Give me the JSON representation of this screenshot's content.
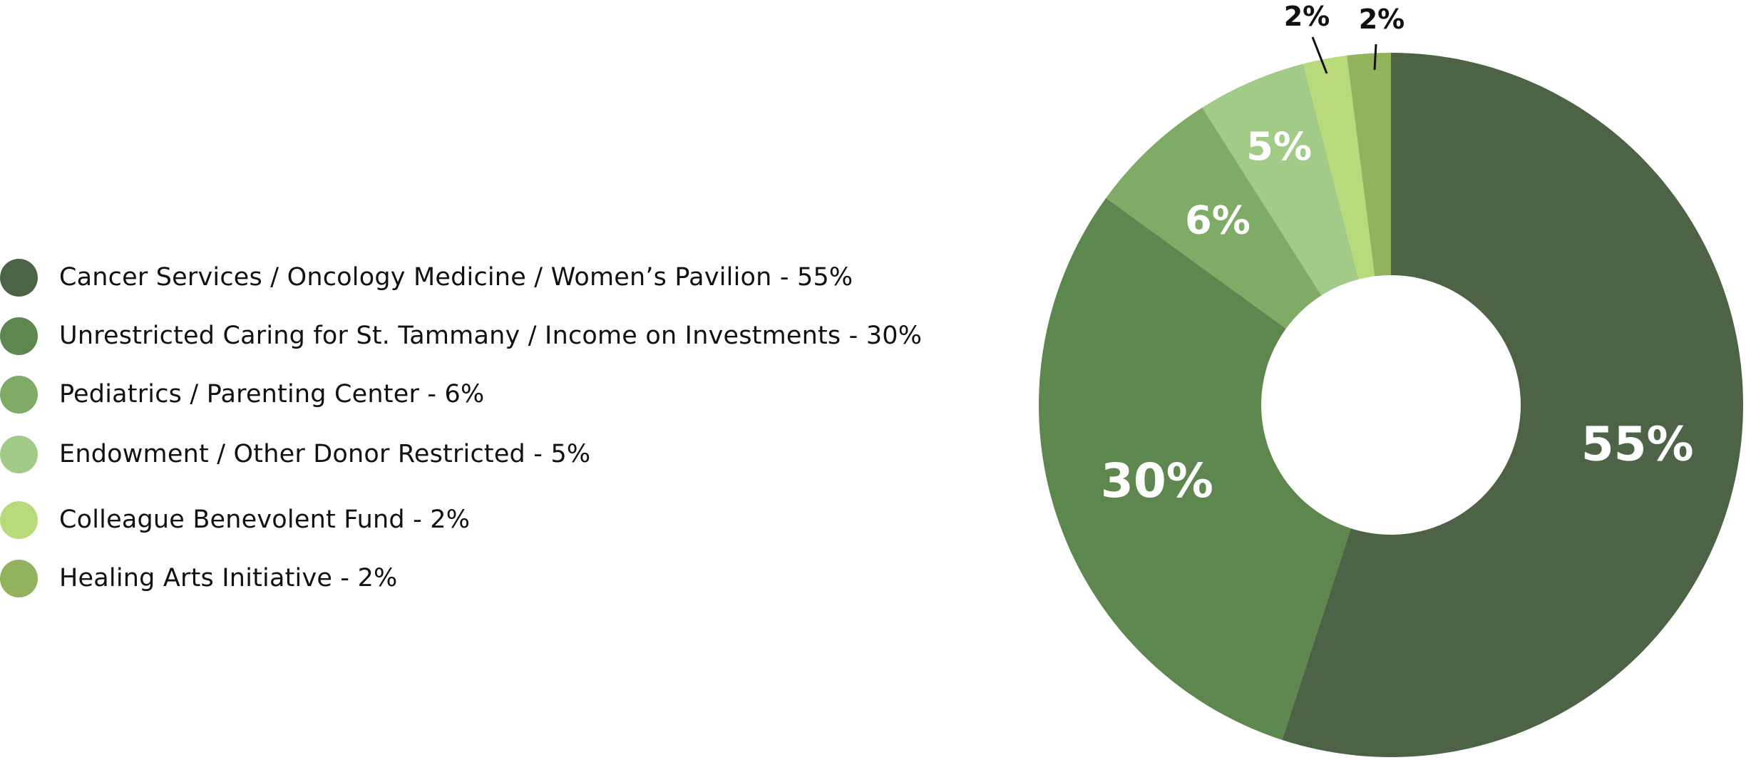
{
  "chart_data": {
    "type": "pie",
    "style": "donut",
    "start_angle_deg": 0,
    "direction": "clockwise",
    "slices": [
      {
        "label": "Cancer Services / Oncology Medicine / Women’s Pavilion - 55%",
        "value": 55,
        "display": "55%",
        "color": "#4c6345"
      },
      {
        "label": "Unrestricted Caring for St. Tammany / Income on Investments - 30%",
        "value": 30,
        "display": "30%",
        "color": "#5e874f"
      },
      {
        "label": "Pediatrics / Parenting Center - 6%",
        "value": 6,
        "display": "6%",
        "color": "#7fab67"
      },
      {
        "label": "Endowment / Other Donor Restricted - 5%",
        "value": 5,
        "display": "5%",
        "color": "#a2cb88"
      },
      {
        "label": "Colleague Benevolent Fund - 2%",
        "value": 2,
        "display": "2%",
        "color": "#b8da7a"
      },
      {
        "label": "Healing Arts Initiative - 2%",
        "value": 2,
        "display": "2%",
        "color": "#92b25e"
      }
    ],
    "legend_position": "left"
  }
}
